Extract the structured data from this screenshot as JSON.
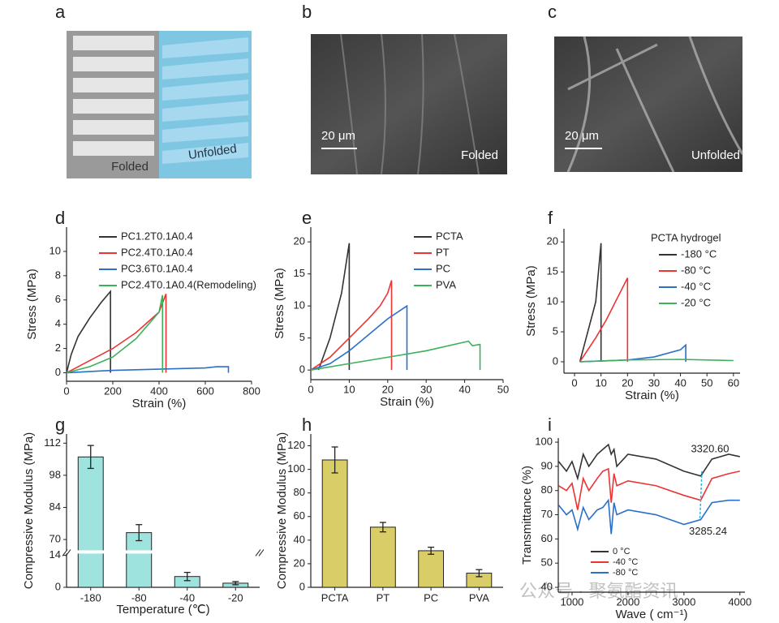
{
  "images": [
    {
      "panel_label": "a",
      "texts": [
        "Folded",
        "Unfolded"
      ]
    },
    {
      "panel_label": "b",
      "scale_bar": "20 μm",
      "caption": "Folded"
    },
    {
      "panel_label": "c",
      "scale_bar": "20 μm",
      "caption": "Unfolded"
    }
  ],
  "watermark": "公众号 · 聚氨酯资讯",
  "chart_data": [
    {
      "type": "line",
      "panel_label": "d",
      "xlabel": "Strain (%)",
      "ylabel": "Stress (MPa)",
      "xlim": [
        0,
        800
      ],
      "xticks": [
        0,
        200,
        400,
        600,
        800
      ],
      "ylim": [
        -0.7,
        12
      ],
      "yticks": [
        0,
        2,
        4,
        6,
        8,
        10
      ],
      "legend": "upper left",
      "series": [
        {
          "name": "PC1.2T0.1A0.4",
          "color": "#333333",
          "x": [
            0,
            20,
            50,
            100,
            150,
            190,
            190
          ],
          "values": [
            0,
            1.5,
            3,
            4.5,
            5.8,
            6.7,
            0
          ]
        },
        {
          "name": "PC2.4T0.1A0.4",
          "color": "#ee3333",
          "x": [
            0,
            100,
            200,
            300,
            400,
            430,
            430
          ],
          "values": [
            0,
            1,
            2,
            3.3,
            5,
            6.5,
            0
          ]
        },
        {
          "name": "PC3.6T0.1A0.4",
          "color": "#2a6fc9",
          "x": [
            0,
            200,
            400,
            600,
            650,
            700,
            700
          ],
          "values": [
            0,
            0.2,
            0.3,
            0.4,
            0.5,
            0.5,
            0
          ]
        },
        {
          "name": "PC2.4T0.1A0.4(Remodeling)",
          "color": "#3db05a",
          "x": [
            0,
            100,
            200,
            300,
            400,
            415,
            415
          ],
          "values": [
            0,
            0.5,
            1.3,
            2.8,
            5,
            6.4,
            0
          ]
        }
      ]
    },
    {
      "type": "line",
      "panel_label": "e",
      "xlabel": "Strain (%)",
      "ylabel": "Stress (MPa)",
      "xlim": [
        0,
        50
      ],
      "xticks": [
        0,
        10,
        20,
        30,
        40,
        50
      ],
      "ylim": [
        -1.5,
        22.3
      ],
      "yticks": [
        0,
        5,
        10,
        15,
        20
      ],
      "legend": "upper right",
      "series": [
        {
          "name": "PCTA",
          "color": "#333333",
          "x": [
            2,
            5,
            8,
            10,
            10
          ],
          "values": [
            0,
            5,
            12,
            19.8,
            0
          ]
        },
        {
          "name": "PT",
          "color": "#ee3333",
          "x": [
            0,
            5,
            10,
            15,
            18,
            20,
            21,
            21
          ],
          "values": [
            0,
            2,
            5,
            8,
            10,
            12,
            14,
            0
          ]
        },
        {
          "name": "PC",
          "color": "#2a6fc9",
          "x": [
            0,
            5,
            10,
            15,
            20,
            25,
            25
          ],
          "values": [
            0,
            1,
            3,
            5.5,
            8,
            10,
            0
          ]
        },
        {
          "name": "PVA",
          "color": "#3db05a",
          "x": [
            0,
            10,
            20,
            30,
            41,
            42,
            44,
            44
          ],
          "values": [
            0,
            1,
            2,
            3,
            4.5,
            3.8,
            4,
            0
          ]
        }
      ]
    },
    {
      "type": "line",
      "panel_label": "f",
      "xlabel": "Strain (%)",
      "ylabel": "Stress (MPa)",
      "legend_title": "PCTA hydrogel",
      "xlim": [
        -4,
        62.5
      ],
      "xticks": [
        0,
        10,
        20,
        30,
        40,
        50,
        60
      ],
      "ylim": [
        -1.9,
        22.2
      ],
      "yticks": [
        0,
        5,
        10,
        15,
        20
      ],
      "legend": "upper right",
      "series": [
        {
          "name": "-180 °C",
          "color": "#333333",
          "x": [
            2,
            8,
            10,
            10
          ],
          "values": [
            0,
            10,
            19.8,
            0
          ]
        },
        {
          "name": "-80 °C",
          "color": "#ee3333",
          "x": [
            2,
            5,
            8,
            12,
            20,
            20
          ],
          "values": [
            0,
            2,
            4,
            7,
            14,
            0
          ]
        },
        {
          "name": "-40 °C",
          "color": "#2a6fc9",
          "x": [
            2,
            20,
            30,
            40,
            42,
            42
          ],
          "values": [
            0,
            0.3,
            0.8,
            2,
            2.8,
            0
          ]
        },
        {
          "name": "-20 °C",
          "color": "#3db05a",
          "x": [
            2,
            20,
            40,
            60
          ],
          "values": [
            0,
            0.3,
            0.4,
            0.2
          ]
        }
      ]
    },
    {
      "type": "bar",
      "panel_label": "g",
      "xlabel": "Temperature (℃)",
      "ylabel": "Compressive Modulus (MPa)",
      "categories": [
        "-180",
        "-80",
        "-40",
        "-20"
      ],
      "values": [
        106,
        73,
        4.7,
        1.8
      ],
      "errors": [
        5,
        3.5,
        1.8,
        0.7
      ],
      "color": "#9fe3df",
      "ylim": [
        0,
        116
      ],
      "axis_break": [
        14,
        66
      ],
      "yticks": [
        0,
        14,
        70,
        84,
        98,
        112
      ]
    },
    {
      "type": "bar",
      "panel_label": "h",
      "ylabel": "Compressive Modulus (MPa)",
      "categories": [
        "PCTA",
        "PT",
        "PC",
        "PVA"
      ],
      "values": [
        108,
        51,
        31,
        12
      ],
      "errors": [
        11,
        4,
        3,
        3
      ],
      "color": "#d8cd66",
      "ylim": [
        0,
        130
      ],
      "yticks": [
        0,
        20,
        40,
        60,
        80,
        100,
        120
      ]
    },
    {
      "type": "line",
      "panel_label": "i",
      "xlabel": "Wave ( cm⁻¹)",
      "ylabel": "Transmittance (%)",
      "xlim": [
        754,
        4090
      ],
      "xticks": [
        1000,
        2000,
        3000,
        4000
      ],
      "ylim": [
        38,
        101.7
      ],
      "yticks": [
        40,
        50,
        60,
        70,
        80,
        90,
        100
      ],
      "legend": "lower left",
      "peaks": {
        "values": [
          3320.6,
          3285.24
        ],
        "value_labels": [
          "3320.60",
          "3285.24"
        ]
      },
      "series": [
        {
          "name": "0 °C",
          "color": "#333333",
          "x": [
            760,
            900,
            1000,
            1100,
            1200,
            1300,
            1450,
            1550,
            1650,
            1700,
            1750,
            1800,
            2000,
            2500,
            3000,
            3300,
            3500,
            3800,
            4000
          ],
          "values": [
            92,
            88,
            92,
            85,
            95,
            90,
            95,
            97,
            99,
            95,
            97,
            90,
            95,
            93,
            88,
            86,
            93,
            95,
            94
          ]
        },
        {
          "name": "-40 °C",
          "color": "#ee3333",
          "x": [
            760,
            900,
            1000,
            1100,
            1200,
            1300,
            1450,
            1550,
            1650,
            1700,
            1750,
            1800,
            2000,
            2500,
            3000,
            3300,
            3500,
            3800,
            4000
          ],
          "values": [
            82,
            80,
            83,
            72,
            85,
            80,
            85,
            88,
            89,
            75,
            87,
            82,
            84,
            82,
            78,
            76,
            85,
            87,
            88
          ]
        },
        {
          "name": "-80 °C",
          "color": "#2a6fc9",
          "x": [
            760,
            900,
            1000,
            1100,
            1200,
            1300,
            1450,
            1550,
            1650,
            1700,
            1750,
            1800,
            2000,
            2500,
            3000,
            3300,
            3500,
            3800,
            4000
          ],
          "values": [
            74,
            70,
            72,
            64,
            73,
            68,
            72,
            73,
            76,
            62,
            75,
            70,
            72,
            70,
            66,
            68,
            75,
            76,
            76
          ]
        }
      ]
    }
  ]
}
